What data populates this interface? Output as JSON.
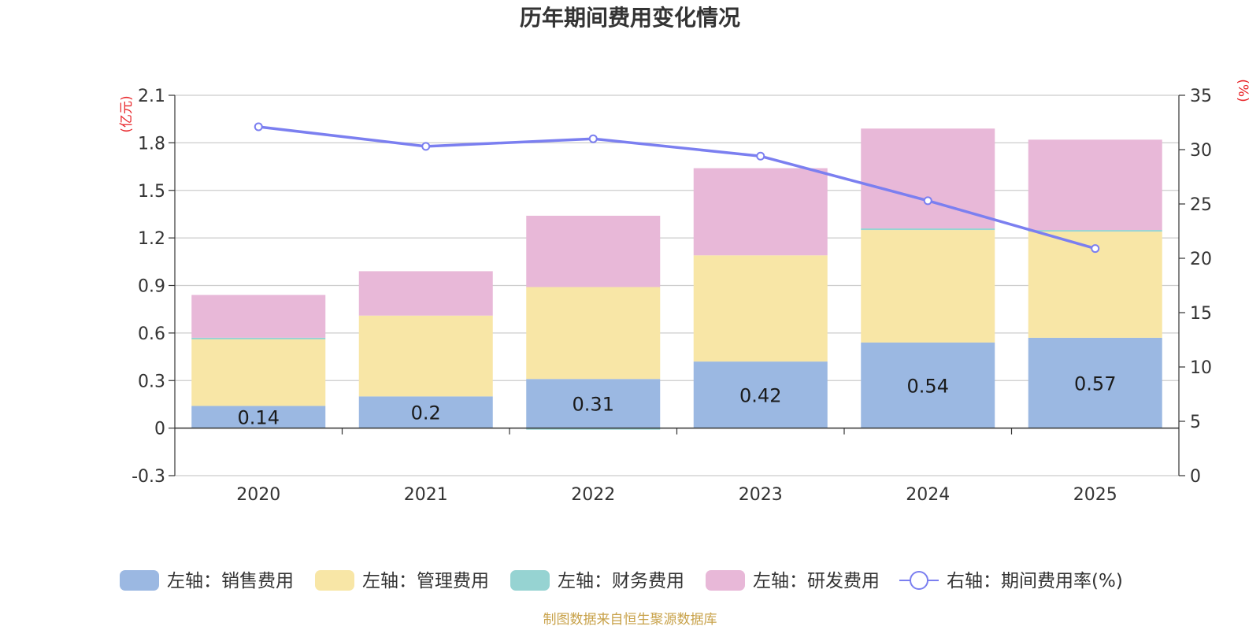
{
  "chart_data": {
    "type": "bar",
    "title": "历年期间费用变化情况",
    "categories": [
      "2020",
      "2021",
      "2022",
      "2023",
      "2024",
      "2025"
    ],
    "series": [
      {
        "name": "销售费用",
        "legend": "左轴：销售费用",
        "axis": "left",
        "color": "#9bb8e2",
        "values": [
          0.14,
          0.2,
          0.31,
          0.42,
          0.54,
          0.57
        ]
      },
      {
        "name": "管理费用",
        "legend": "左轴：管理费用",
        "axis": "left",
        "color": "#f8e6a6",
        "values": [
          0.42,
          0.51,
          0.58,
          0.67,
          0.71,
          0.67
        ]
      },
      {
        "name": "财务费用",
        "legend": "左轴：财务费用",
        "axis": "left",
        "color": "#96d3d2",
        "values": [
          0.01,
          0.0,
          -0.01,
          0.0,
          0.01,
          0.01
        ]
      },
      {
        "name": "研发费用",
        "legend": "左轴：研发费用",
        "axis": "left",
        "color": "#e8b8d8",
        "values": [
          0.27,
          0.28,
          0.45,
          0.55,
          0.63,
          0.57
        ]
      },
      {
        "name": "期间费用率(%)",
        "legend": "右轴：期间费用率(%)",
        "axis": "right",
        "type": "line",
        "color": "#7b7ff0",
        "values": [
          32.1,
          30.3,
          31.0,
          29.4,
          25.3,
          20.9
        ]
      }
    ],
    "bar_labels": [
      "0.14",
      "0.2",
      "0.31",
      "0.42",
      "0.54",
      "0.57"
    ],
    "left_axis": {
      "unit": "(亿元)",
      "min": -0.3,
      "max": 2.1,
      "ticks": [
        -0.3,
        0,
        0.3,
        0.6,
        0.9,
        1.2,
        1.5,
        1.8,
        2.1
      ],
      "tick_labels": [
        "-0.3",
        "0",
        "0.3",
        "0.6",
        "0.9",
        "1.2",
        "1.5",
        "1.8",
        "2.1"
      ]
    },
    "right_axis": {
      "unit": "(%)",
      "min": 0,
      "max": 35,
      "ticks": [
        0,
        5,
        10,
        15,
        20,
        25,
        30,
        35
      ],
      "tick_labels": [
        "0",
        "5",
        "10",
        "15",
        "20",
        "25",
        "30",
        "35"
      ]
    },
    "grid": true,
    "legend_position": "bottom",
    "source": "制图数据来自恒生聚源数据库"
  }
}
